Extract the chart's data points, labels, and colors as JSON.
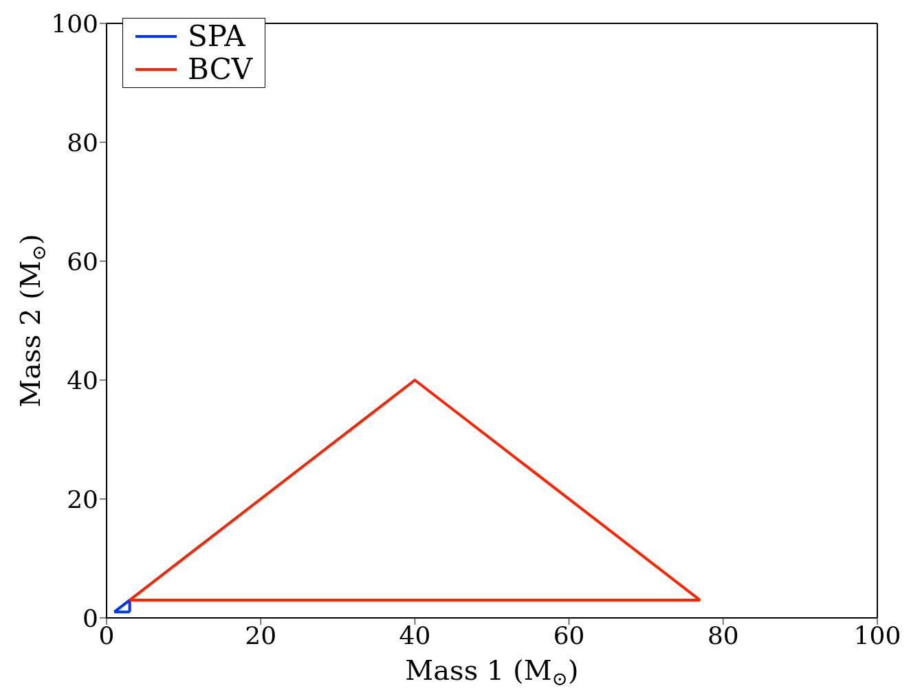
{
  "chart_data": {
    "type": "line",
    "xlabel": "Mass 1 (M$_{⊙}$)",
    "ylabel": "Mass 2 (M$_{⊙}$)",
    "xlim": [
      0,
      100
    ],
    "xticks": [
      0,
      20,
      40,
      60,
      80,
      100
    ],
    "ylim": [
      0,
      100
    ],
    "yticks": [
      0,
      20,
      40,
      60,
      80,
      100
    ],
    "legend": "top left",
    "grid": false,
    "marker": "none",
    "line_style": "solid",
    "series": [
      {
        "name": "SPA",
        "color": "#0033ff",
        "x": [
          1,
          3,
          3
        ],
        "values": [
          1,
          3,
          1
        ]
      },
      {
        "color": "#0033ff",
        "x": [
          1,
          3
        ],
        "values": [
          1,
          1
        ]
      },
      {
        "name": "BCV",
        "color": "#ff2200",
        "x": [
          3,
          40,
          77
        ],
        "values": [
          3,
          40,
          3
        ]
      },
      {
        "color": "#ff2200",
        "x": [
          3,
          77
        ],
        "values": [
          3,
          3
        ]
      }
    ]
  }
}
